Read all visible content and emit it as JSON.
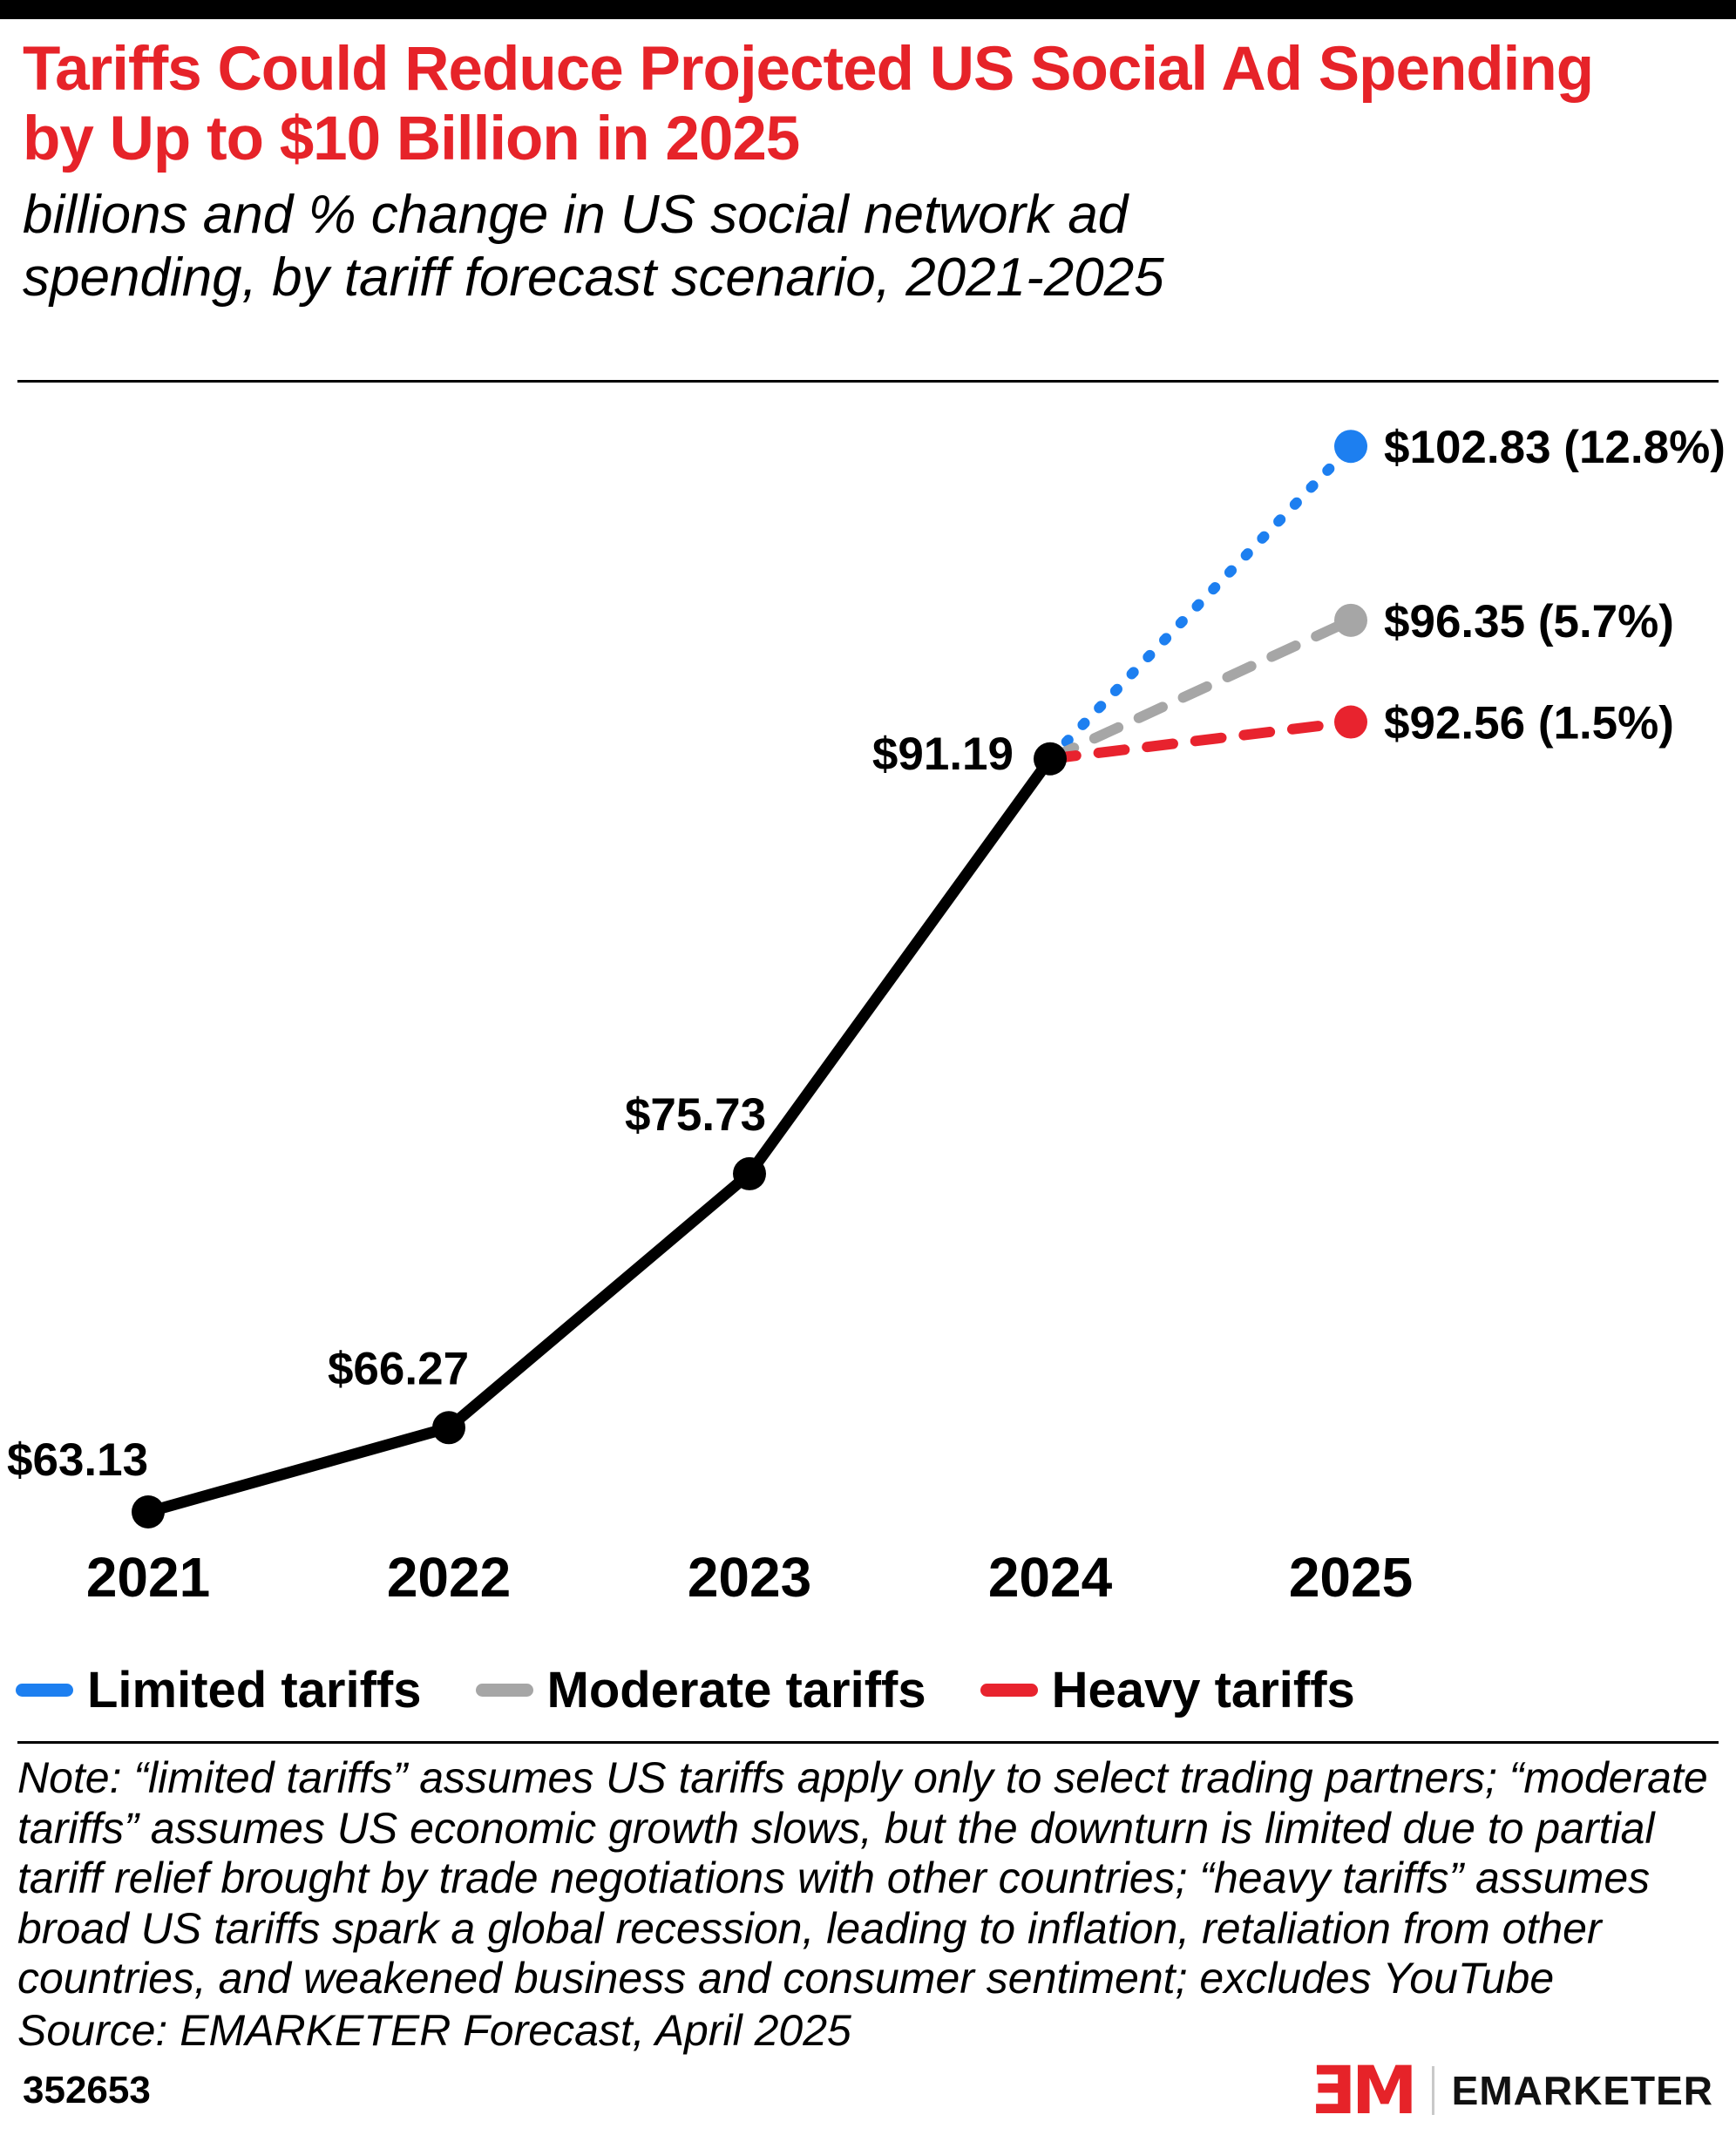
{
  "header": {
    "title": "Tariffs Could Reduce Projected US Social Ad Spending by Up to $10 Billion in 2025",
    "subtitle": "billions and % change in US social network ad spending, by tariff forecast scenario, 2021-2025"
  },
  "colors": {
    "accent_red": "#e62329",
    "limited_blue": "#1d7ff0",
    "moderate_gray": "#a6a6a6",
    "heavy_red": "#e8232e",
    "line_black": "#000000"
  },
  "chart_data": {
    "type": "line",
    "title": "Tariffs Could Reduce Projected US Social Ad Spending by Up to $10 Billion in 2025",
    "x_years": [
      2021,
      2022,
      2023,
      2024,
      2025
    ],
    "xticks": [
      "2021",
      "2022",
      "2023",
      "2024",
      "2025"
    ],
    "ylabel": "billions of US dollars",
    "ylim": [
      60,
      108
    ],
    "grid": false,
    "legend_position": "bottom",
    "series": [
      {
        "name": "US social network ad spending",
        "color": "#000000",
        "dash": "solid",
        "x": [
          2021,
          2022,
          2023,
          2024
        ],
        "values": [
          63.13,
          66.27,
          75.73,
          91.19
        ],
        "point_labels": [
          "$63.13",
          "$66.27",
          "$75.73",
          "$91.19"
        ]
      },
      {
        "name": "Limited tariffs",
        "color": "#1d7ff0",
        "dash": "dotted",
        "x": [
          2024,
          2025
        ],
        "values": [
          91.19,
          102.83
        ],
        "end_label": "$102.83 (12.8%)"
      },
      {
        "name": "Moderate tariffs",
        "color": "#a6a6a6",
        "dash": "dashed",
        "x": [
          2024,
          2025
        ],
        "values": [
          91.19,
          96.35
        ],
        "end_label": "$96.35 (5.7%)"
      },
      {
        "name": "Heavy tariffs",
        "color": "#e8232e",
        "dash": "dashed",
        "x": [
          2024,
          2025
        ],
        "values": [
          91.19,
          92.56
        ],
        "end_label": "$92.56 (1.5%)"
      }
    ]
  },
  "legend": [
    {
      "label": "Limited tariffs",
      "color": "#1d7ff0"
    },
    {
      "label": "Moderate tariffs",
      "color": "#a6a6a6"
    },
    {
      "label": "Heavy tariffs",
      "color": "#e8232e"
    }
  ],
  "footer": {
    "note": "Note: “limited tariffs” assumes US tariffs apply only to select trading partners; “moderate tariffs” assumes US economic growth slows, but the downturn is limited due to partial tariff relief brought by trade negotiations with other countries; “heavy tariffs” assumes broad US tariffs spark a global recession, leading to inflation, retaliation from other countries, and weakened business and consumer sentiment; excludes YouTube",
    "source": "Source: EMARKETER Forecast, April 2025",
    "chart_id": "352653",
    "logo_mark": "ƎM",
    "logo_text": "EMARKETER"
  }
}
